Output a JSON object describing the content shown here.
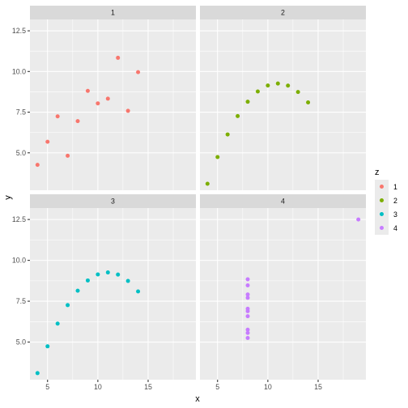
{
  "chart_data": {
    "type": "scatter",
    "xlabel": "x",
    "ylabel": "y",
    "facet_labels": [
      "1",
      "2",
      "3",
      "4"
    ],
    "x_ticks": [
      5,
      10,
      15
    ],
    "y_ticks": [
      5.0,
      7.5,
      10.0,
      12.5
    ],
    "y_tick_labels": [
      "5.0",
      "7.5",
      "10.0",
      "12.5"
    ],
    "x_tick_labels": [
      "5",
      "10",
      "15"
    ],
    "xlim": [
      3.25,
      19.75
    ],
    "ylim": [
      2.7,
      13.2
    ],
    "grid": true,
    "legend": {
      "title": "z",
      "position": "right",
      "entries": [
        "1",
        "2",
        "3",
        "4"
      ]
    },
    "series": [
      {
        "name": "1",
        "color": "#F8766D",
        "x": [
          10,
          8,
          13,
          9,
          11,
          14,
          6,
          4,
          12,
          7,
          5
        ],
        "y": [
          8.04,
          6.95,
          7.58,
          8.81,
          8.33,
          9.96,
          7.24,
          4.26,
          10.84,
          4.82,
          5.68
        ]
      },
      {
        "name": "2",
        "color": "#7CAE00",
        "x": [
          10,
          8,
          13,
          9,
          11,
          14,
          6,
          4,
          12,
          7,
          5
        ],
        "y": [
          9.14,
          8.14,
          8.74,
          8.77,
          9.26,
          8.1,
          6.13,
          3.1,
          9.13,
          7.26,
          4.74
        ]
      },
      {
        "name": "3",
        "color": "#00BFC4",
        "x": [
          10,
          8,
          13,
          9,
          11,
          14,
          6,
          4,
          12,
          7,
          5
        ],
        "y": [
          9.14,
          8.14,
          8.74,
          8.77,
          9.26,
          8.1,
          6.13,
          3.1,
          9.13,
          7.26,
          4.74
        ]
      },
      {
        "name": "4",
        "color": "#C77CFF",
        "x": [
          8,
          8,
          8,
          8,
          8,
          8,
          8,
          19,
          8,
          8,
          8
        ],
        "y": [
          6.58,
          5.76,
          7.71,
          8.84,
          8.47,
          7.04,
          5.25,
          12.5,
          5.56,
          7.91,
          6.89
        ]
      }
    ]
  }
}
